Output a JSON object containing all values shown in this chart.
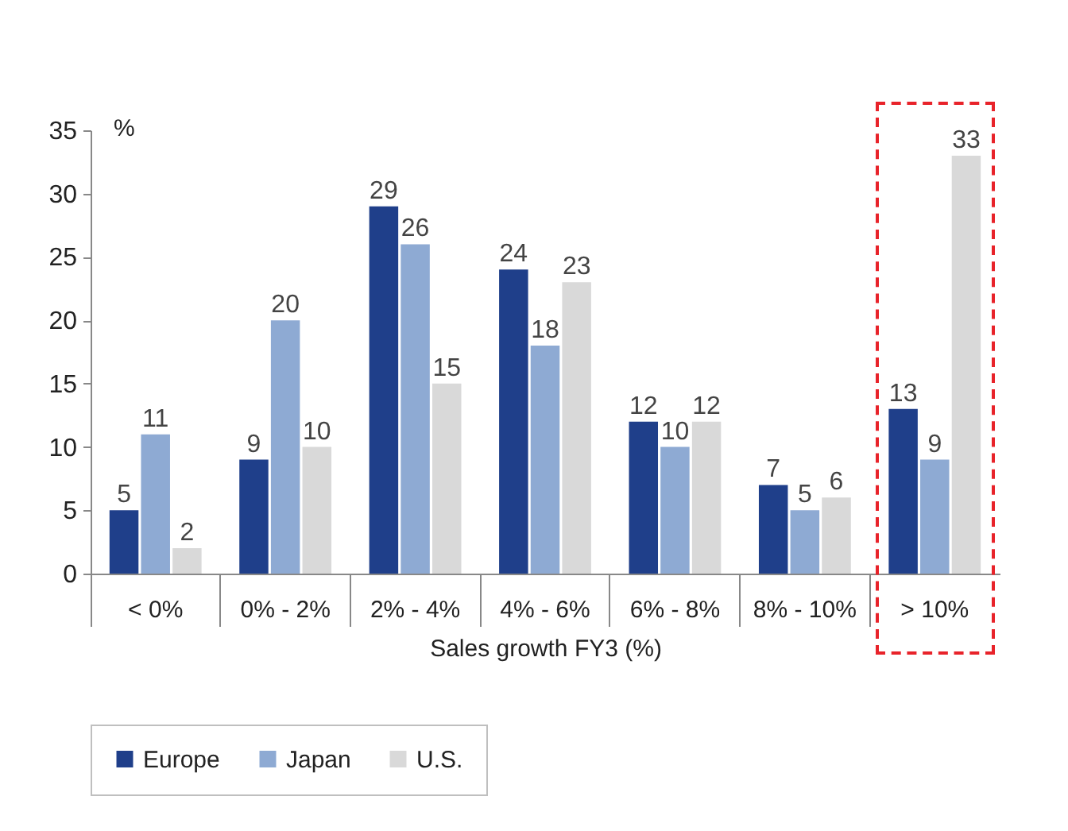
{
  "chart_data": {
    "type": "bar",
    "xlabel": "Sales growth FY3 (%)",
    "ylabel": "%",
    "categories": [
      "< 0%",
      "0% - 2%",
      "2% - 4%",
      "4% - 6%",
      "6% - 8%",
      "8% - 10%",
      "> 10%"
    ],
    "series": [
      {
        "name": "Europe",
        "color": "#1f3f8a",
        "values": [
          5,
          9,
          29,
          24,
          12,
          7,
          13
        ]
      },
      {
        "name": "Japan",
        "color": "#8eaad3",
        "values": [
          11,
          20,
          26,
          18,
          10,
          5,
          9
        ]
      },
      {
        "name": "U.S.",
        "color": "#d9d9d9",
        "values": [
          2,
          10,
          15,
          23,
          12,
          6,
          33
        ]
      }
    ],
    "ylim": [
      0,
      35
    ],
    "yticks": [
      0,
      5,
      10,
      15,
      20,
      25,
      30,
      35
    ],
    "data_labels": true,
    "legend": "bottom",
    "grid": false
  }
}
